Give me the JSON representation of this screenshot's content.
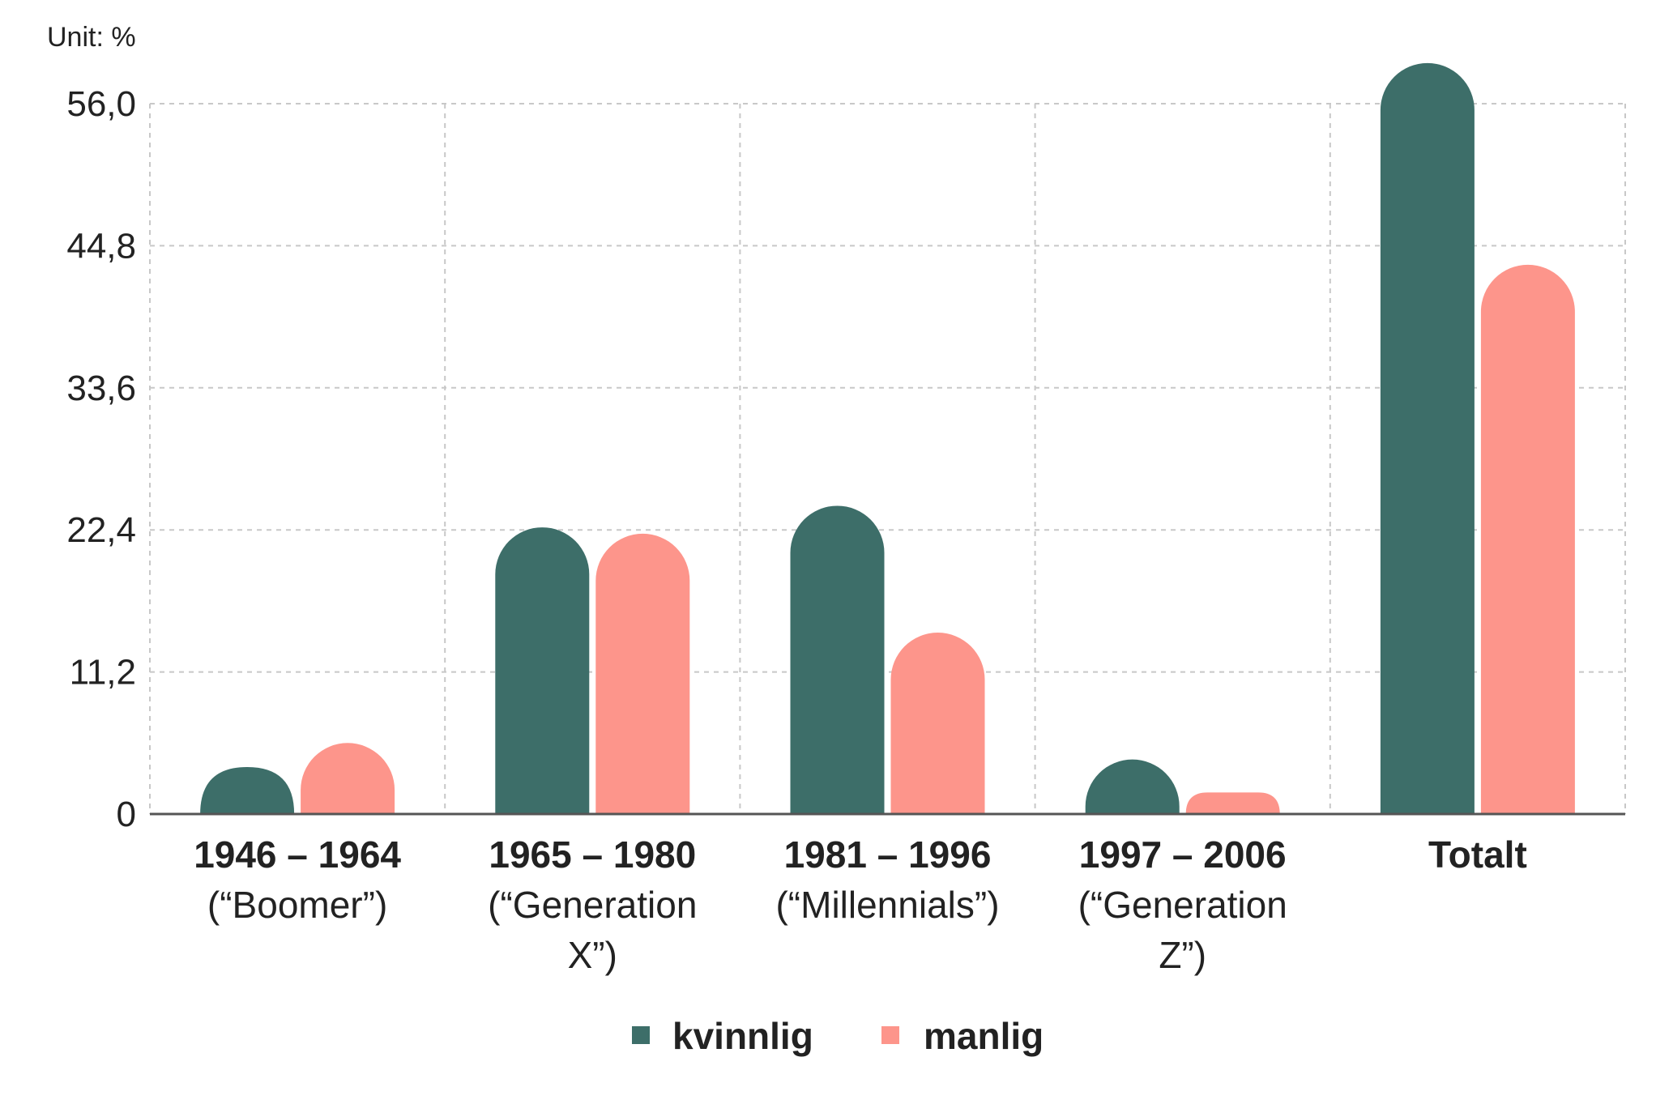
{
  "chart_data": {
    "type": "bar",
    "unit_label": "Unit: %",
    "categories": [
      [
        "1946 – 1964",
        "(“Boomer”)"
      ],
      [
        "1965 – 1980",
        "(“Generation",
        "X”)"
      ],
      [
        "1981 – 1996",
        "(“Millennials”)"
      ],
      [
        "1997 – 2006",
        "(“Generation",
        "Z”)"
      ],
      [
        "Totalt"
      ]
    ],
    "series": [
      {
        "name": "kvinnlig",
        "color": "#3d6e69",
        "values": [
          3.7,
          22.6,
          24.3,
          4.3,
          59.2
        ]
      },
      {
        "name": "manlig",
        "color": "#fd958b",
        "values": [
          5.6,
          22.1,
          14.3,
          1.7,
          43.3
        ]
      }
    ],
    "y_ticks": [
      "0",
      "11,2",
      "22,4",
      "33,6",
      "44,8",
      "56,0"
    ],
    "y_tick_values": [
      0,
      11.2,
      22.4,
      33.6,
      44.8,
      56.0
    ],
    "ylim": [
      0,
      56.0
    ],
    "grid": true,
    "legend_position": "bottom-center"
  }
}
